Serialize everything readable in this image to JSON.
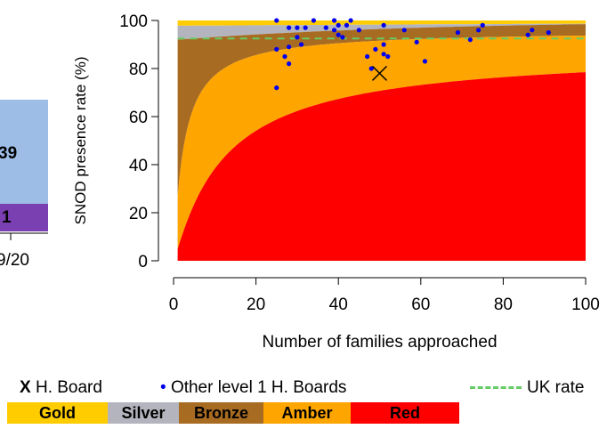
{
  "chart_data": [
    {
      "type": "bar",
      "note_partial": "clipped chart at left edge",
      "segments": [
        {
          "value_label": "39",
          "color": "#9dbde6"
        },
        {
          "value_label": "1",
          "color": "#7a3fb0"
        }
      ],
      "tick_label": "9/20"
    },
    {
      "type": "area",
      "title": "",
      "xlabel": "Number of families approached",
      "ylabel": "SNOD presence rate (%)",
      "xlim": [
        0,
        100
      ],
      "ylim": [
        0,
        100
      ],
      "xticks": [
        0,
        20,
        40,
        60,
        80,
        100
      ],
      "yticks": [
        0,
        20,
        40,
        60,
        80,
        100
      ],
      "grid": false,
      "bands": [
        {
          "name": "Gold",
          "color": "#ffcc00"
        },
        {
          "name": "Silver",
          "color": "#b4b4be"
        },
        {
          "name": "Bronze",
          "color": "#a86b22"
        },
        {
          "name": "Amber",
          "color": "#ffa500"
        },
        {
          "name": "Red",
          "color": "#ff0000"
        }
      ],
      "uk_rate": 92.5,
      "highlight_point": {
        "x": 50,
        "y": 78
      },
      "other_boards": [
        {
          "x": 25,
          "y": 100
        },
        {
          "x": 25,
          "y": 88
        },
        {
          "x": 25,
          "y": 72
        },
        {
          "x": 27,
          "y": 85
        },
        {
          "x": 28,
          "y": 97
        },
        {
          "x": 28,
          "y": 89
        },
        {
          "x": 28,
          "y": 82
        },
        {
          "x": 30,
          "y": 97
        },
        {
          "x": 30,
          "y": 93
        },
        {
          "x": 31,
          "y": 90
        },
        {
          "x": 32,
          "y": 97
        },
        {
          "x": 34,
          "y": 100
        },
        {
          "x": 37,
          "y": 97
        },
        {
          "x": 39,
          "y": 100
        },
        {
          "x": 39,
          "y": 96
        },
        {
          "x": 40,
          "y": 98
        },
        {
          "x": 40,
          "y": 94
        },
        {
          "x": 41,
          "y": 93
        },
        {
          "x": 42,
          "y": 98
        },
        {
          "x": 43,
          "y": 100
        },
        {
          "x": 45,
          "y": 96
        },
        {
          "x": 47,
          "y": 85
        },
        {
          "x": 48,
          "y": 80
        },
        {
          "x": 49,
          "y": 88
        },
        {
          "x": 51,
          "y": 98
        },
        {
          "x": 51,
          "y": 90
        },
        {
          "x": 51,
          "y": 86
        },
        {
          "x": 52,
          "y": 85
        },
        {
          "x": 56,
          "y": 96
        },
        {
          "x": 59,
          "y": 91
        },
        {
          "x": 61,
          "y": 83
        },
        {
          "x": 69,
          "y": 95
        },
        {
          "x": 72,
          "y": 92
        },
        {
          "x": 74,
          "y": 96
        },
        {
          "x": 75,
          "y": 98
        },
        {
          "x": 86,
          "y": 94
        },
        {
          "x": 87,
          "y": 96
        },
        {
          "x": 91,
          "y": 95
        }
      ]
    }
  ],
  "legend": {
    "marker_x": "X",
    "board_label": "H. Board",
    "dot_glyph": "•",
    "other_label": "Other level 1 H. Boards",
    "uk_label": "UK rate"
  }
}
